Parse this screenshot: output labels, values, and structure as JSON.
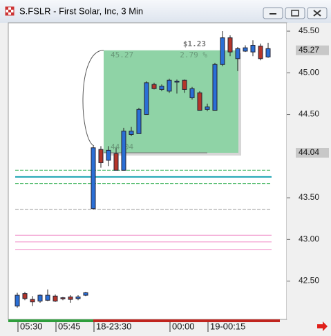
{
  "window_title": "S.FSLR - First Solar, Inc, 3 Min",
  "chart_data": {
    "type": "candlestick",
    "categories": [
      "05:30",
      null,
      null,
      null,
      null,
      "05:45",
      null,
      null,
      null,
      null,
      "18-23:30",
      null,
      null,
      null,
      null,
      null,
      null,
      null,
      null,
      null,
      "00:00",
      null,
      null,
      null,
      null,
      "19-00:15",
      null,
      null,
      null,
      null,
      null,
      null,
      null,
      null
    ],
    "open": [
      42.2,
      42.35,
      42.28,
      42.26,
      42.27,
      42.32,
      42.3,
      42.31,
      42.29,
      42.33,
      43.37,
      44.08,
      43.95,
      44.03,
      43.83,
      44.26,
      44.27,
      44.5,
      44.86,
      44.8,
      44.78,
      44.9,
      44.91,
      44.7,
      44.76,
      44.56,
      44.55,
      45.1,
      45.42,
      45.17,
      45.26,
      45.25,
      45.32,
      45.19
    ],
    "high": [
      42.36,
      42.37,
      42.32,
      42.34,
      42.4,
      42.34,
      42.31,
      42.33,
      42.33,
      42.37,
      44.12,
      44.12,
      44.12,
      44.1,
      44.34,
      44.35,
      44.58,
      44.9,
      44.88,
      44.86,
      44.93,
      44.92,
      44.92,
      44.83,
      44.78,
      44.63,
      45.12,
      45.5,
      45.45,
      45.31,
      45.33,
      45.39,
      45.35,
      45.36
    ],
    "low": [
      42.18,
      42.27,
      42.2,
      42.24,
      42.26,
      42.25,
      42.27,
      42.24,
      42.27,
      42.32,
      43.36,
      43.86,
      43.88,
      43.83,
      43.83,
      44.24,
      44.27,
      44.5,
      44.8,
      44.78,
      44.76,
      44.75,
      44.76,
      44.68,
      44.55,
      44.54,
      44.55,
      45.08,
      45.2,
      45.02,
      45.25,
      45.2,
      45.15,
      45.18
    ],
    "close": [
      42.33,
      42.29,
      42.25,
      42.33,
      42.33,
      42.26,
      42.29,
      42.28,
      42.31,
      42.36,
      44.1,
      43.92,
      44.07,
      43.83,
      44.3,
      44.3,
      44.56,
      44.88,
      44.81,
      44.84,
      44.91,
      44.9,
      44.8,
      44.81,
      44.55,
      44.59,
      45.1,
      45.42,
      45.25,
      45.29,
      45.3,
      45.33,
      45.17,
      45.29
    ],
    "up_color": "#2a6fd6",
    "down_color": "#b5352a",
    "ylim": [
      42.04,
      45.6
    ],
    "yticks": [
      {
        "value": 42.5,
        "label": "42.50"
      },
      {
        "value": 43,
        "label": "43.00"
      },
      {
        "value": 43.5,
        "label": "43.50"
      },
      {
        "value": 44.5,
        "label": "44.50"
      },
      {
        "value": 45,
        "label": "45.00"
      },
      {
        "value": 45.5,
        "label": "45.50"
      }
    ],
    "price_markers": [
      {
        "value": 45.27,
        "label": "45.27"
      },
      {
        "value": 44.04,
        "label": "44.04"
      }
    ],
    "levels": [
      {
        "value": 43.83,
        "color": "#3cb45a",
        "style": "dashed"
      },
      {
        "value": 43.75,
        "color": "#1aa3b3",
        "style": "solid"
      },
      {
        "value": 43.67,
        "color": "#3cb45a",
        "style": "dashed"
      },
      {
        "value": 43.36,
        "color": "#999999",
        "style": "dashed"
      },
      {
        "value": 43.05,
        "color": "#f08cc8",
        "style": "solid"
      },
      {
        "value": 42.97,
        "color": "#f08cc8",
        "style": "solid"
      },
      {
        "value": 42.88,
        "color": "#f08cc8",
        "style": "solid"
      }
    ],
    "measure_box": {
      "top": {
        "value": 45.27,
        "label": "45.27"
      },
      "bottom": {
        "value": 44.04,
        "label": "44.04"
      },
      "change_label": "$1.23",
      "percent_label": "2.79 %",
      "color": "#8fd3a6"
    }
  }
}
